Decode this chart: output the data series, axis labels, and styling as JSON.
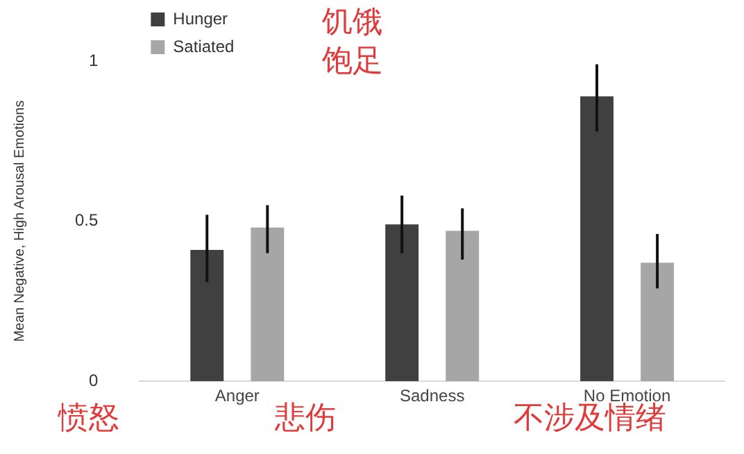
{
  "chart_data": {
    "type": "bar",
    "ylabel": "Mean Negative, High Arousal Emotions",
    "categories": [
      "Anger",
      "Sadness",
      "No Emotion"
    ],
    "series": [
      {
        "name": "Hunger",
        "color": "#404040",
        "values": [
          0.41,
          0.49,
          0.89
        ],
        "errors": [
          [
            0.31,
            0.52
          ],
          [
            0.4,
            0.58
          ],
          [
            0.78,
            0.99
          ]
        ]
      },
      {
        "name": "Satiated",
        "color": "#a6a6a6",
        "values": [
          0.48,
          0.47,
          0.37
        ],
        "errors": [
          [
            0.4,
            0.55
          ],
          [
            0.38,
            0.54
          ],
          [
            0.29,
            0.46
          ]
        ]
      }
    ],
    "ylim": [
      0,
      1
    ],
    "yticks": [
      0,
      0.5,
      1
    ],
    "grid": false,
    "legend": "top left",
    "annotations": [
      "饥饿",
      "饱足",
      "愤怒",
      "悲伤",
      "不涉及情绪"
    ]
  }
}
